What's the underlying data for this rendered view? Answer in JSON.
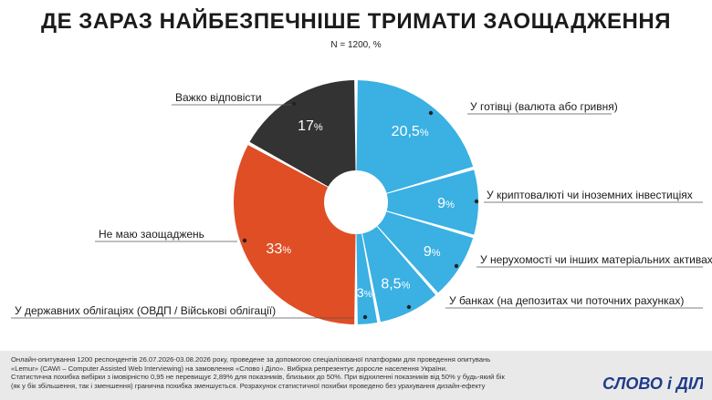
{
  "header": {
    "title": "ДЕ ЗАРАЗ НАЙБЕЗПЕЧНІШЕ ТРИМАТИ ЗАОЩАДЖЕННЯ",
    "subtitle": "N = 1200, %"
  },
  "chart_data": {
    "type": "pie",
    "variant": "donut",
    "start": "top",
    "direction": "clockwise",
    "slices": [
      {
        "label": "У готівці (валюта або гривня)",
        "value": 20.5,
        "display": "20,5",
        "color": "#3ab0e3"
      },
      {
        "label": "У криптовалюті чи іноземних інвестиціях",
        "value": 9,
        "display": "9",
        "color": "#3ab0e3"
      },
      {
        "label": "У нерухомості чи інших матеріальних активах",
        "value": 9,
        "display": "9",
        "color": "#3ab0e3"
      },
      {
        "label": "У банках (на депозитах чи поточних рахунках)",
        "value": 8.5,
        "display": "8,5",
        "color": "#3ab0e3"
      },
      {
        "label": "У державних облігаціях (ОВДП / Військові облігації)",
        "value": 3,
        "display": "3",
        "color": "#3ab0e3"
      },
      {
        "label": "Не маю заощаджень",
        "value": 33,
        "display": "33",
        "color": "#e04e25"
      },
      {
        "label": "Важко відповісти",
        "value": 17,
        "display": "17",
        "color": "#333333"
      }
    ],
    "unit": "%"
  },
  "footer": {
    "lines": [
      "Онлайн-опитування 1200 респондентів 26.07.2026-03.08.2026 року, проведене за допомогою спеціалізованої платформи для проведення опитувань",
      "«Lemur» (CAWI – Computer Assisted Web Interviewing) на замовлення «Слово і Діло». Вибірка репрезентує доросле населення України.",
      "Статистична похибка вибірки з імовірністю 0,95 не перевищує 2,89% для показників, близьких до 50%. При відхиленні показників від 50% у будь-який бік",
      "(як у бік збільшення, так і зменшення) гранична похибка зменшується. Розрахунок статистичної похибки проведено без урахування дизайн-ефекту"
    ],
    "logo_text": "СЛОВО і ДІЛО"
  }
}
